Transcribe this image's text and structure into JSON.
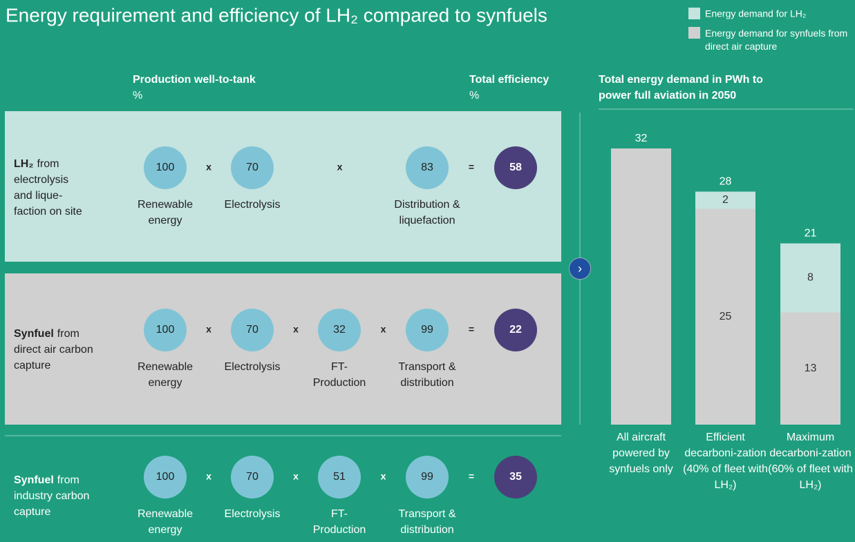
{
  "title": "Energy requirement and efficiency of LH₂ compared to synfuels",
  "diagram": {
    "header": {
      "production": "Production well-to-tank",
      "production_unit": "%",
      "total": "Total efficiency",
      "total_unit": "%"
    },
    "rows": [
      {
        "name": "LH₂",
        "lines": [
          "from",
          "electrolysis",
          "and lique-",
          "faction on site"
        ],
        "steps": [
          {
            "value": 100,
            "label": [
              "Renewable",
              "energy"
            ]
          },
          {
            "value": 70,
            "label": [
              "Electrolysis"
            ]
          },
          null,
          {
            "value": 83,
            "label": [
              "Distribution &",
              "liquefaction"
            ]
          }
        ],
        "operators": [
          "x",
          "x",
          "="
        ],
        "result": 58
      },
      {
        "name": "Synfuel",
        "lines": [
          "from",
          "direct air carbon",
          "capture"
        ],
        "steps": [
          {
            "value": 100,
            "label": [
              "Renewable",
              "energy"
            ]
          },
          {
            "value": 70,
            "label": [
              "Electrolysis"
            ]
          },
          {
            "value": 32,
            "label": [
              "FT-",
              "Production"
            ]
          },
          {
            "value": 99,
            "label": [
              "Transport &",
              "distribution"
            ]
          }
        ],
        "operators": [
          "x",
          "x",
          "x",
          "="
        ],
        "result": 22
      },
      {
        "name": "Synfuel",
        "lines": [
          "from",
          "industry carbon",
          "capture"
        ],
        "steps": [
          {
            "value": 100,
            "label": [
              "Renewable",
              "energy"
            ]
          },
          {
            "value": 70,
            "label": [
              "Electrolysis"
            ]
          },
          {
            "value": 51,
            "label": [
              "FT-",
              "Production"
            ]
          },
          {
            "value": 99,
            "label": [
              "Transport &",
              "distribution"
            ]
          }
        ],
        "operators": [
          "x",
          "x",
          "x",
          "="
        ],
        "result": 35
      }
    ]
  },
  "chart_data": {
    "type": "stacked_bar",
    "title": [
      "Total energy demand in PWh to",
      "power full aviation in 2050"
    ],
    "categories": [
      "All aircraft powered by synfuels only",
      "Efficient decarboni-zation (40% of fleet with LH₂)",
      "Maximum decarboni-zation (60% of fleet with LH₂)"
    ],
    "series": [
      {
        "name": "Energy demand for synfuels from direct air capture",
        "color": "#d0d0d0",
        "values": [
          32,
          25,
          13
        ]
      },
      {
        "name": "Energy demand for LH₂",
        "color": "#c5e3df",
        "values": [
          null,
          2,
          8
        ]
      }
    ],
    "totals": [
      32,
      28,
      21
    ],
    "ylim": [
      0,
      32
    ]
  }
}
